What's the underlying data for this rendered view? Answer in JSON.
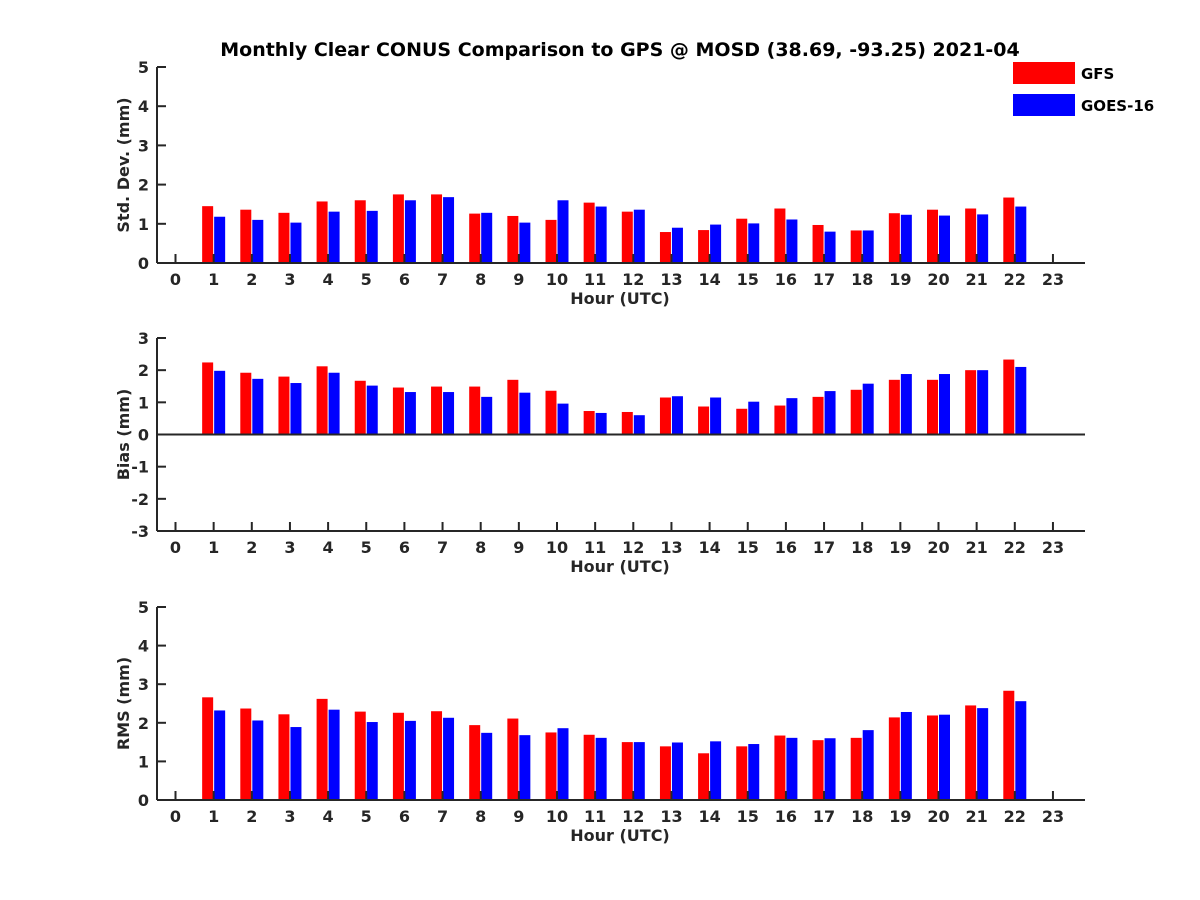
{
  "colors": {
    "gfs": "#ff0000",
    "goes": "#0000ff",
    "axis": "#262626"
  },
  "chart_data": {
    "title": "Monthly Clear CONUS Comparison to GPS @ MOSD (38.69, -93.25) 2021-04",
    "legend": {
      "placement": "top-right",
      "entries": [
        "GFS",
        "GOES-16"
      ]
    },
    "panels": [
      {
        "type": "bar",
        "ylabel": "Std. Dev. (mm)",
        "xlabel": "Hour (UTC)",
        "ylim": [
          0,
          5
        ],
        "yticks": [
          "0",
          "1",
          "2",
          "3",
          "4",
          "5"
        ],
        "x": [
          "0",
          "1",
          "2",
          "3",
          "4",
          "5",
          "6",
          "7",
          "8",
          "9",
          "10",
          "11",
          "12",
          "13",
          "14",
          "15",
          "16",
          "17",
          "18",
          "19",
          "20",
          "21",
          "22",
          "23"
        ],
        "series": [
          {
            "name": "GFS",
            "values": [
              null,
              1.45,
              1.36,
              1.28,
              1.57,
              1.6,
              1.75,
              1.75,
              1.26,
              1.2,
              1.1,
              1.54,
              1.31,
              0.79,
              0.84,
              1.13,
              1.39,
              0.97,
              0.83,
              1.27,
              1.36,
              1.39,
              1.67,
              null
            ]
          },
          {
            "name": "GOES-16",
            "values": [
              null,
              1.18,
              1.1,
              1.03,
              1.31,
              1.33,
              1.6,
              1.68,
              1.28,
              1.03,
              1.6,
              1.44,
              1.36,
              0.9,
              0.98,
              1.01,
              1.11,
              0.8,
              0.83,
              1.23,
              1.21,
              1.24,
              1.44,
              null
            ]
          }
        ]
      },
      {
        "type": "bar",
        "ylabel": "Bias (mm)",
        "xlabel": "Hour (UTC)",
        "ylim": [
          -3,
          3
        ],
        "yticks": [
          "-3",
          "-2",
          "-1",
          "0",
          "1",
          "2",
          "3"
        ],
        "x": [
          "0",
          "1",
          "2",
          "3",
          "4",
          "5",
          "6",
          "7",
          "8",
          "9",
          "10",
          "11",
          "12",
          "13",
          "14",
          "15",
          "16",
          "17",
          "18",
          "19",
          "20",
          "21",
          "22",
          "23"
        ],
        "series": [
          {
            "name": "GFS",
            "values": [
              null,
              2.24,
              1.92,
              1.8,
              2.12,
              1.67,
              1.46,
              1.49,
              1.49,
              1.7,
              1.36,
              0.73,
              0.7,
              1.15,
              0.87,
              0.8,
              0.9,
              1.17,
              1.39,
              1.7,
              1.7,
              2.0,
              2.33,
              null
            ]
          },
          {
            "name": "GOES-16",
            "values": [
              null,
              1.98,
              1.73,
              1.6,
              1.92,
              1.52,
              1.32,
              1.32,
              1.17,
              1.3,
              0.96,
              0.67,
              0.6,
              1.19,
              1.15,
              1.02,
              1.13,
              1.35,
              1.58,
              1.88,
              1.88,
              2.0,
              2.1,
              null
            ]
          }
        ]
      },
      {
        "type": "bar",
        "ylabel": "RMS (mm)",
        "xlabel": "Hour (UTC)",
        "ylim": [
          0,
          5
        ],
        "yticks": [
          "0",
          "1",
          "2",
          "3",
          "4",
          "5"
        ],
        "x": [
          "0",
          "1",
          "2",
          "3",
          "4",
          "5",
          "6",
          "7",
          "8",
          "9",
          "10",
          "11",
          "12",
          "13",
          "14",
          "15",
          "16",
          "17",
          "18",
          "19",
          "20",
          "21",
          "22",
          "23"
        ],
        "series": [
          {
            "name": "GFS",
            "values": [
              null,
              2.66,
              2.37,
              2.22,
              2.62,
              2.29,
              2.26,
              2.3,
              1.94,
              2.11,
              1.75,
              1.69,
              1.5,
              1.39,
              1.21,
              1.39,
              1.67,
              1.55,
              1.61,
              2.14,
              2.19,
              2.45,
              2.83,
              null
            ]
          },
          {
            "name": "GOES-16",
            "values": [
              null,
              2.32,
              2.06,
              1.89,
              2.34,
              2.02,
              2.05,
              2.13,
              1.74,
              1.68,
              1.86,
              1.61,
              1.5,
              1.49,
              1.52,
              1.45,
              1.61,
              1.6,
              1.81,
              2.28,
              2.21,
              2.38,
              2.56,
              null
            ]
          }
        ]
      }
    ]
  }
}
